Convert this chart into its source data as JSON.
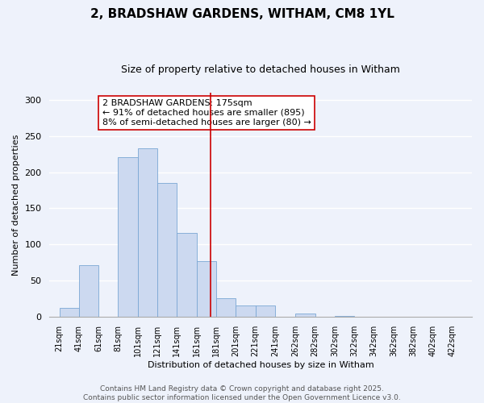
{
  "title": "2, BRADSHAW GARDENS, WITHAM, CM8 1YL",
  "subtitle": "Size of property relative to detached houses in Witham",
  "xlabel": "Distribution of detached houses by size in Witham",
  "ylabel": "Number of detached properties",
  "bar_edges": [
    21,
    41,
    61,
    81,
    101,
    121,
    141,
    161,
    181,
    201,
    221,
    241,
    262,
    282,
    302,
    322,
    342,
    362,
    382,
    402,
    422
  ],
  "bar_heights": [
    12,
    71,
    0,
    221,
    233,
    185,
    116,
    77,
    26,
    16,
    15,
    0,
    4,
    0,
    1,
    0,
    0,
    0,
    0,
    0
  ],
  "bar_color": "#ccd9f0",
  "bar_edge_color": "#7ba7d4",
  "vline_x": 175,
  "vline_color": "#cc0000",
  "annotation_text": "2 BRADSHAW GARDENS: 175sqm\n← 91% of detached houses are smaller (895)\n8% of semi-detached houses are larger (80) →",
  "annotation_box_facecolor": "#ffffff",
  "annotation_box_edgecolor": "#cc0000",
  "ylim": [
    0,
    310
  ],
  "xlim": [
    11,
    442
  ],
  "tick_positions": [
    21,
    41,
    61,
    81,
    101,
    121,
    141,
    161,
    181,
    201,
    221,
    241,
    262,
    282,
    302,
    322,
    342,
    362,
    382,
    402,
    422
  ],
  "tick_labels": [
    "21sqm",
    "41sqm",
    "61sqm",
    "81sqm",
    "101sqm",
    "121sqm",
    "141sqm",
    "161sqm",
    "181sqm",
    "201sqm",
    "221sqm",
    "241sqm",
    "262sqm",
    "282sqm",
    "302sqm",
    "322sqm",
    "342sqm",
    "362sqm",
    "382sqm",
    "402sqm",
    "422sqm"
  ],
  "yticks": [
    0,
    50,
    100,
    150,
    200,
    250,
    300
  ],
  "footer_line1": "Contains HM Land Registry data © Crown copyright and database right 2025.",
  "footer_line2": "Contains public sector information licensed under the Open Government Licence v3.0.",
  "background_color": "#eef2fb",
  "grid_color": "#ffffff",
  "title_fontsize": 11,
  "subtitle_fontsize": 9,
  "axis_label_fontsize": 8,
  "tick_fontsize": 7,
  "footer_fontsize": 6.5,
  "annotation_fontsize": 8
}
